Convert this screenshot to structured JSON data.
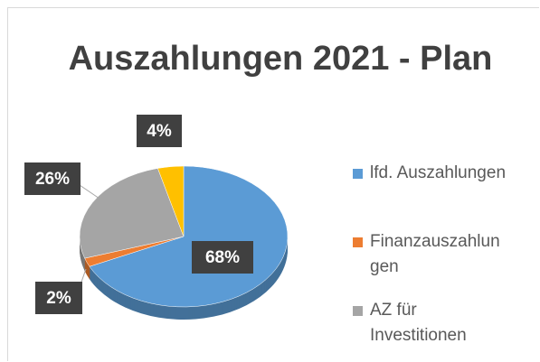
{
  "chart_data": {
    "type": "pie",
    "title": "Auszahlungen 2021 - Plan",
    "categories": [
      "lfd. Auszahlungen",
      "Finanzauszahlungen",
      "AZ für Investitionen",
      null
    ],
    "values": [
      68,
      2,
      26,
      4
    ],
    "value_labels": [
      "68%",
      "2%",
      "26%",
      "4%"
    ],
    "colors": [
      "#5b9bd5",
      "#ed7d31",
      "#a5a5a5",
      "#ffc000"
    ],
    "legend": "right"
  }
}
